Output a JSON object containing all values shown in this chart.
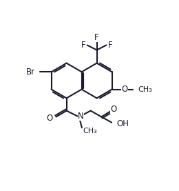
{
  "bg_color": "#ffffff",
  "line_color": "#1a1a2e",
  "line_width": 1.5,
  "font_size": 8.5,
  "figsize": [
    2.6,
    2.77
  ],
  "dpi": 100,
  "xlim": [
    0,
    10
  ],
  "ylim": [
    0,
    10.7
  ]
}
